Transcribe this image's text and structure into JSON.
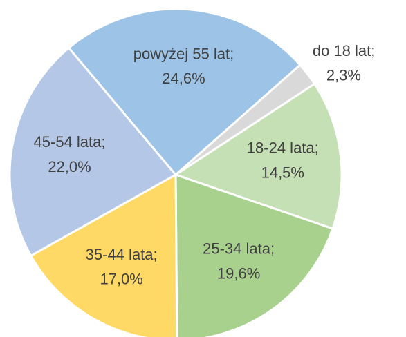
{
  "chart_data": {
    "type": "pie",
    "categories": [
      "do 18 lat",
      "18-24 lata",
      "25-34 lata",
      "35-44 lata",
      "45-54 lata",
      "powyżej 55 lat"
    ],
    "values": [
      2.3,
      14.5,
      19.6,
      17.0,
      22.0,
      24.6
    ],
    "value_labels": [
      "2,3%",
      "14,5%",
      "19,6%",
      "17,0%",
      "22,0%",
      "24,6%"
    ],
    "label_separator": ";",
    "colors": [
      "#d9d9d9",
      "#c5e0b4",
      "#a9d18e",
      "#ffd966",
      "#b4c7e7",
      "#9dc3e6"
    ]
  }
}
